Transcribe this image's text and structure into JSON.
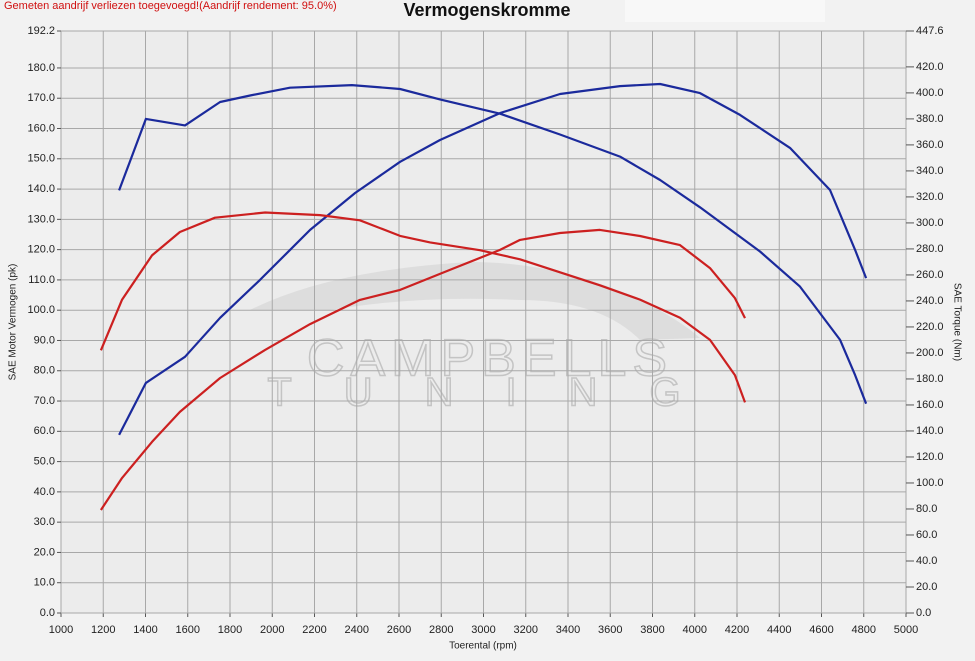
{
  "chart_data": {
    "type": "line",
    "title": "Vermogenskromme",
    "note": "Gemeten aandrijf verliezen toegevoegd!(Aandrijf rendement: 95.0%)",
    "watermark": [
      "CAMPBELLS",
      "TUNING"
    ],
    "x_label": "Toerental (rpm)",
    "y_label": "SAE Motor Vermogen (pk)",
    "y2_label": "SAE Torque (Nm)",
    "xlim": [
      1000,
      5000
    ],
    "xticks": [
      1000,
      1200,
      1400,
      1600,
      1800,
      2000,
      2200,
      2400,
      2600,
      2800,
      3000,
      3200,
      3400,
      3600,
      3800,
      4000,
      4200,
      4400,
      4600,
      4800,
      5000
    ],
    "ylim": [
      0,
      192.2
    ],
    "yticks": [
      {
        "value": 0,
        "label": "0.0"
      },
      {
        "value": 10,
        "label": "10.0"
      },
      {
        "value": 20,
        "label": "20.0"
      },
      {
        "value": 30,
        "label": "30.0"
      },
      {
        "value": 40,
        "label": "40.0"
      },
      {
        "value": 50,
        "label": "50.0"
      },
      {
        "value": 60,
        "label": "60.0"
      },
      {
        "value": 70,
        "label": "70.0"
      },
      {
        "value": 80,
        "label": "80.0"
      },
      {
        "value": 90,
        "label": "90.0"
      },
      {
        "value": 100,
        "label": "100.0"
      },
      {
        "value": 110,
        "label": "110.0"
      },
      {
        "value": 120,
        "label": "120.0"
      },
      {
        "value": 130,
        "label": "130.0"
      },
      {
        "value": 140,
        "label": "140.0"
      },
      {
        "value": 150,
        "label": "150.0"
      },
      {
        "value": 160,
        "label": "160.0"
      },
      {
        "value": 170,
        "label": "170.0"
      },
      {
        "value": 180,
        "label": "180.0"
      },
      192.2
    ],
    "y2lim": [
      0,
      447.6
    ],
    "y2ticks": [
      {
        "value": 0,
        "label": "0.0"
      },
      {
        "value": 20,
        "label": "20.0"
      },
      {
        "value": 40,
        "label": "40.0"
      },
      {
        "value": 60,
        "label": "60.0"
      },
      {
        "value": 80,
        "label": "80.0"
      },
      {
        "value": 100,
        "label": "100.0"
      },
      {
        "value": 120,
        "label": "120.0"
      },
      {
        "value": 140,
        "label": "140.0"
      },
      {
        "value": 160,
        "label": "160.0"
      },
      {
        "value": 180,
        "label": "180.0"
      },
      {
        "value": 200,
        "label": "200.0"
      },
      {
        "value": 220,
        "label": "220.0"
      },
      {
        "value": 240,
        "label": "240.0"
      },
      {
        "value": 260,
        "label": "260.0"
      },
      {
        "value": 280,
        "label": "280.0"
      },
      {
        "value": 300,
        "label": "300.0"
      },
      {
        "value": 320,
        "label": "320.0"
      },
      {
        "value": 340,
        "label": "340.0"
      },
      {
        "value": 360,
        "label": "360.0"
      },
      {
        "value": 380,
        "label": "380.0"
      },
      {
        "value": 400,
        "label": "400.0"
      },
      {
        "value": 420,
        "label": "420.0"
      },
      447.6
    ],
    "grid": true,
    "series": [
      {
        "color": "#1b2a9c",
        "axis": "y2",
        "x": [
          1275,
          1402,
          1587,
          1753,
          1895,
          2084,
          2377,
          2605,
          2794,
          3078,
          3362,
          3646,
          3836,
          4025,
          4309,
          4498,
          4688,
          4759,
          4811
        ],
        "values": [
          325,
          380,
          375,
          393,
          398,
          404,
          406,
          403,
          395,
          384,
          368,
          351,
          333,
          312,
          278,
          251,
          210,
          183,
          161
        ]
      },
      {
        "color": "#1b2a9c",
        "axis": "y",
        "x": [
          1275,
          1402,
          1587,
          1753,
          1942,
          2179,
          2392,
          2605,
          2794,
          3078,
          3362,
          3646,
          3836,
          4025,
          4214,
          4451,
          4640,
          4759,
          4811
        ],
        "values": [
          58.8,
          76,
          84.6,
          97.5,
          110,
          126.5,
          138.7,
          149,
          156.2,
          165.1,
          171.4,
          174,
          174.7,
          171.7,
          164.5,
          153.6,
          139.7,
          119.9,
          110.6
        ]
      },
      {
        "color": "#cc2020",
        "axis": "y2",
        "x": [
          1189,
          1289,
          1431,
          1563,
          1729,
          1966,
          2226,
          2415,
          2605,
          2747,
          2983,
          3173,
          3362,
          3551,
          3741,
          3930,
          4072,
          4190,
          4238
        ],
        "values": [
          202,
          241,
          275,
          293,
          304,
          308,
          306,
          302,
          290,
          285,
          279,
          272,
          262,
          252,
          241,
          227,
          210,
          183,
          162
        ]
      },
      {
        "color": "#cc2020",
        "axis": "y",
        "x": [
          1189,
          1289,
          1431,
          1563,
          1753,
          1966,
          2179,
          2415,
          2605,
          2841,
          3078,
          3173,
          3362,
          3551,
          3741,
          3930,
          4072,
          4190,
          4238
        ],
        "values": [
          34,
          44.6,
          56.5,
          66.4,
          77.6,
          86.9,
          95.4,
          103.4,
          106.7,
          113.3,
          119.9,
          123.2,
          125.5,
          126.5,
          124.5,
          121.5,
          113.9,
          104,
          97.4
        ]
      }
    ]
  }
}
